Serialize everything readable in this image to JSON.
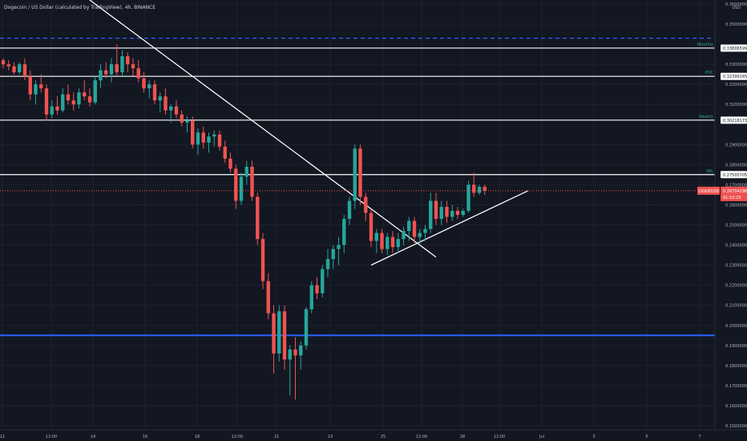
{
  "header": {
    "title": "Dogecoin / US Dollar (calculated by TradingView), 4h, BINANCE"
  },
  "chart_data": {
    "type": "candlestick",
    "title": "Dogecoin / US Dollar (calculated by TradingView), 4h, BINANCE",
    "currency": "USD",
    "y_ticks": [
      "0.36000000",
      "0.35000000",
      "0.33000000",
      "0.32000000",
      "0.31000000",
      "0.29000000",
      "0.28000000",
      "0.27000000",
      "0.26000000",
      "0.25000000",
      "0.24000000",
      "0.23000000",
      "0.22000000",
      "0.21000000",
      "0.20000000",
      "0.19000000",
      "0.18000000",
      "0.17000000",
      "0.16000000",
      "0.15000000"
    ],
    "x_ticks": [
      "11",
      "12:00",
      "14",
      "16",
      "18",
      "12:00",
      "21",
      "23",
      "25",
      "12:00",
      "28",
      "12:00",
      "Jul",
      "3",
      "5",
      "7"
    ],
    "ylim": [
      0.148,
      0.362
    ],
    "grid": true,
    "up_color": "#26a69a",
    "down_color": "#ef5350",
    "horizontal_levels": [
      {
        "label": "Monthly",
        "value": "0.33806599",
        "price": 0.33806599,
        "color": "#ffffff"
      },
      {
        "label": "POC",
        "value": "0.32399165",
        "price": 0.32399165,
        "color": "#ffffff"
      },
      {
        "label": "Weekly",
        "value": "0.30218173",
        "price": 0.30218173,
        "color": "#ffffff"
      },
      {
        "label": "VAL",
        "value": "0.27505705",
        "price": 0.27505705,
        "color": "#ffffff"
      },
      {
        "label": "",
        "value": "",
        "price": 0.343,
        "color": "#2962ff",
        "style": "dashed"
      },
      {
        "label": "",
        "value": "",
        "price": 0.195,
        "color": "#2962ff",
        "style": "solid"
      }
    ],
    "current_price": {
      "symbol": "DOGEUSD",
      "value": "0.26704298",
      "countdown": "01:52:23",
      "price": 0.26704298,
      "color": "#ef5350"
    },
    "candles": [
      [
        0.332,
        0.333,
        0.328,
        0.33
      ],
      [
        0.33,
        0.332,
        0.327,
        0.329
      ],
      [
        0.329,
        0.331,
        0.325,
        0.326
      ],
      [
        0.326,
        0.331,
        0.325,
        0.33
      ],
      [
        0.33,
        0.333,
        0.322,
        0.324
      ],
      [
        0.324,
        0.327,
        0.312,
        0.315
      ],
      [
        0.315,
        0.322,
        0.31,
        0.32
      ],
      [
        0.32,
        0.325,
        0.316,
        0.318
      ],
      [
        0.318,
        0.32,
        0.302,
        0.305
      ],
      [
        0.305,
        0.312,
        0.303,
        0.309
      ],
      [
        0.309,
        0.314,
        0.305,
        0.307
      ],
      [
        0.307,
        0.318,
        0.306,
        0.315
      ],
      [
        0.315,
        0.32,
        0.31,
        0.312
      ],
      [
        0.312,
        0.316,
        0.307,
        0.31
      ],
      [
        0.31,
        0.318,
        0.308,
        0.316
      ],
      [
        0.316,
        0.322,
        0.312,
        0.314
      ],
      [
        0.314,
        0.318,
        0.309,
        0.311
      ],
      [
        0.311,
        0.324,
        0.31,
        0.322
      ],
      [
        0.322,
        0.33,
        0.318,
        0.327
      ],
      [
        0.327,
        0.331,
        0.323,
        0.325
      ],
      [
        0.325,
        0.333,
        0.321,
        0.33
      ],
      [
        0.33,
        0.34,
        0.324,
        0.326
      ],
      [
        0.326,
        0.337,
        0.324,
        0.334
      ],
      [
        0.334,
        0.336,
        0.326,
        0.33
      ],
      [
        0.33,
        0.333,
        0.324,
        0.328
      ],
      [
        0.328,
        0.332,
        0.321,
        0.323
      ],
      [
        0.323,
        0.326,
        0.316,
        0.318
      ],
      [
        0.318,
        0.322,
        0.313,
        0.32
      ],
      [
        0.32,
        0.322,
        0.31,
        0.312
      ],
      [
        0.312,
        0.316,
        0.306,
        0.314
      ],
      [
        0.314,
        0.318,
        0.305,
        0.307
      ],
      [
        0.307,
        0.31,
        0.301,
        0.309
      ],
      [
        0.309,
        0.312,
        0.303,
        0.305
      ],
      [
        0.305,
        0.307,
        0.299,
        0.301
      ],
      [
        0.301,
        0.304,
        0.296,
        0.302
      ],
      [
        0.302,
        0.304,
        0.288,
        0.29
      ],
      [
        0.29,
        0.298,
        0.285,
        0.296
      ],
      [
        0.296,
        0.299,
        0.288,
        0.291
      ],
      [
        0.291,
        0.296,
        0.286,
        0.294
      ],
      [
        0.294,
        0.297,
        0.289,
        0.295
      ],
      [
        0.295,
        0.297,
        0.287,
        0.289
      ],
      [
        0.289,
        0.292,
        0.281,
        0.283
      ],
      [
        0.283,
        0.286,
        0.276,
        0.278
      ],
      [
        0.278,
        0.28,
        0.258,
        0.262
      ],
      [
        0.262,
        0.276,
        0.26,
        0.274
      ],
      [
        0.274,
        0.282,
        0.27,
        0.279
      ],
      [
        0.279,
        0.282,
        0.262,
        0.264
      ],
      [
        0.264,
        0.266,
        0.24,
        0.243
      ],
      [
        0.243,
        0.246,
        0.218,
        0.222
      ],
      [
        0.222,
        0.226,
        0.203,
        0.206
      ],
      [
        0.206,
        0.21,
        0.176,
        0.186
      ],
      [
        0.186,
        0.21,
        0.182,
        0.207
      ],
      [
        0.207,
        0.21,
        0.178,
        0.183
      ],
      [
        0.183,
        0.19,
        0.165,
        0.188
      ],
      [
        0.188,
        0.194,
        0.163,
        0.185
      ],
      [
        0.185,
        0.192,
        0.178,
        0.19
      ],
      [
        0.19,
        0.209,
        0.188,
        0.208
      ],
      [
        0.208,
        0.222,
        0.206,
        0.22
      ],
      [
        0.22,
        0.224,
        0.213,
        0.216
      ],
      [
        0.216,
        0.23,
        0.214,
        0.228
      ],
      [
        0.228,
        0.238,
        0.224,
        0.233
      ],
      [
        0.233,
        0.24,
        0.228,
        0.238
      ],
      [
        0.238,
        0.244,
        0.23,
        0.24
      ],
      [
        0.24,
        0.255,
        0.236,
        0.253
      ],
      [
        0.253,
        0.264,
        0.25,
        0.262
      ],
      [
        0.262,
        0.29,
        0.258,
        0.288
      ],
      [
        0.288,
        0.29,
        0.26,
        0.264
      ],
      [
        0.264,
        0.266,
        0.252,
        0.256
      ],
      [
        0.256,
        0.258,
        0.239,
        0.242
      ],
      [
        0.242,
        0.248,
        0.236,
        0.246
      ],
      [
        0.246,
        0.248,
        0.236,
        0.238
      ],
      [
        0.238,
        0.246,
        0.235,
        0.244
      ],
      [
        0.244,
        0.247,
        0.236,
        0.239
      ],
      [
        0.239,
        0.246,
        0.236,
        0.243
      ],
      [
        0.243,
        0.249,
        0.24,
        0.247
      ],
      [
        0.247,
        0.254,
        0.242,
        0.252
      ],
      [
        0.252,
        0.254,
        0.241,
        0.244
      ],
      [
        0.244,
        0.248,
        0.24,
        0.246
      ],
      [
        0.246,
        0.25,
        0.242,
        0.248
      ],
      [
        0.248,
        0.266,
        0.246,
        0.262
      ],
      [
        0.262,
        0.266,
        0.25,
        0.253
      ],
      [
        0.253,
        0.262,
        0.25,
        0.259
      ],
      [
        0.259,
        0.262,
        0.251,
        0.254
      ],
      [
        0.254,
        0.26,
        0.252,
        0.257
      ],
      [
        0.257,
        0.259,
        0.253,
        0.255
      ],
      [
        0.255,
        0.258,
        0.254,
        0.257
      ],
      [
        0.257,
        0.272,
        0.256,
        0.27
      ],
      [
        0.27,
        0.276,
        0.264,
        0.266
      ],
      [
        0.266,
        0.27,
        0.265,
        0.269
      ],
      [
        0.269,
        0.27,
        0.265,
        0.267
      ]
    ],
    "trendlines": [
      {
        "color": "#ffffff",
        "from": {
          "candle": 11,
          "price": 0.372
        },
        "to": {
          "candle": 80,
          "price": 0.234
        }
      },
      {
        "color": "#ffffff",
        "from": {
          "candle": 68,
          "price": 0.23
        },
        "to": {
          "candle": 97,
          "price": 0.267
        }
      }
    ]
  }
}
